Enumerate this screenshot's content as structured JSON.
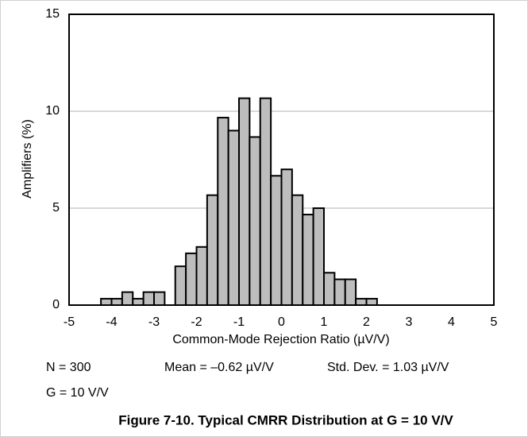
{
  "chart_data": {
    "type": "histogram",
    "x_label": "Common-Mode Rejection Ratio (µV/V)",
    "y_label": "Amplifiers (%)",
    "bins": [
      -4.25,
      -4,
      -3.75,
      -3.5,
      -3.25,
      -3,
      -2.75,
      -2.5,
      -2.25,
      -2,
      -1.75,
      -1.5,
      -1.25,
      -1,
      -0.75,
      -0.5,
      -0.25,
      0,
      0.25,
      0.5,
      0.75,
      1,
      1.25,
      1.5,
      1.75,
      2,
      2.25
    ],
    "values": [
      0.33,
      0.33,
      0.67,
      0.33,
      0.67,
      0.67,
      0,
      2.0,
      2.67,
      3.0,
      5.67,
      9.67,
      9.0,
      10.67,
      8.67,
      10.67,
      6.67,
      7.0,
      5.67,
      4.67,
      5.0,
      1.67,
      1.33,
      1.33,
      0.33,
      0.33
    ],
    "color": "#bdbdbd",
    "xlim": [
      -5,
      5
    ],
    "xticks": [
      -5,
      -4,
      -3,
      -2,
      -1,
      0,
      1,
      2,
      3,
      4,
      5
    ],
    "ylim": [
      0,
      15
    ],
    "yticks": [
      0,
      5,
      10,
      15
    ],
    "grid": true,
    "annotations": [
      "N = 300",
      "Mean = –0.62 µV/V",
      "Std. Dev. = 1.03 µV/V",
      "G = 10 V/V"
    ],
    "caption": "Figure 7-10. Typical CMRR Distribution at G = 10 V/V"
  }
}
